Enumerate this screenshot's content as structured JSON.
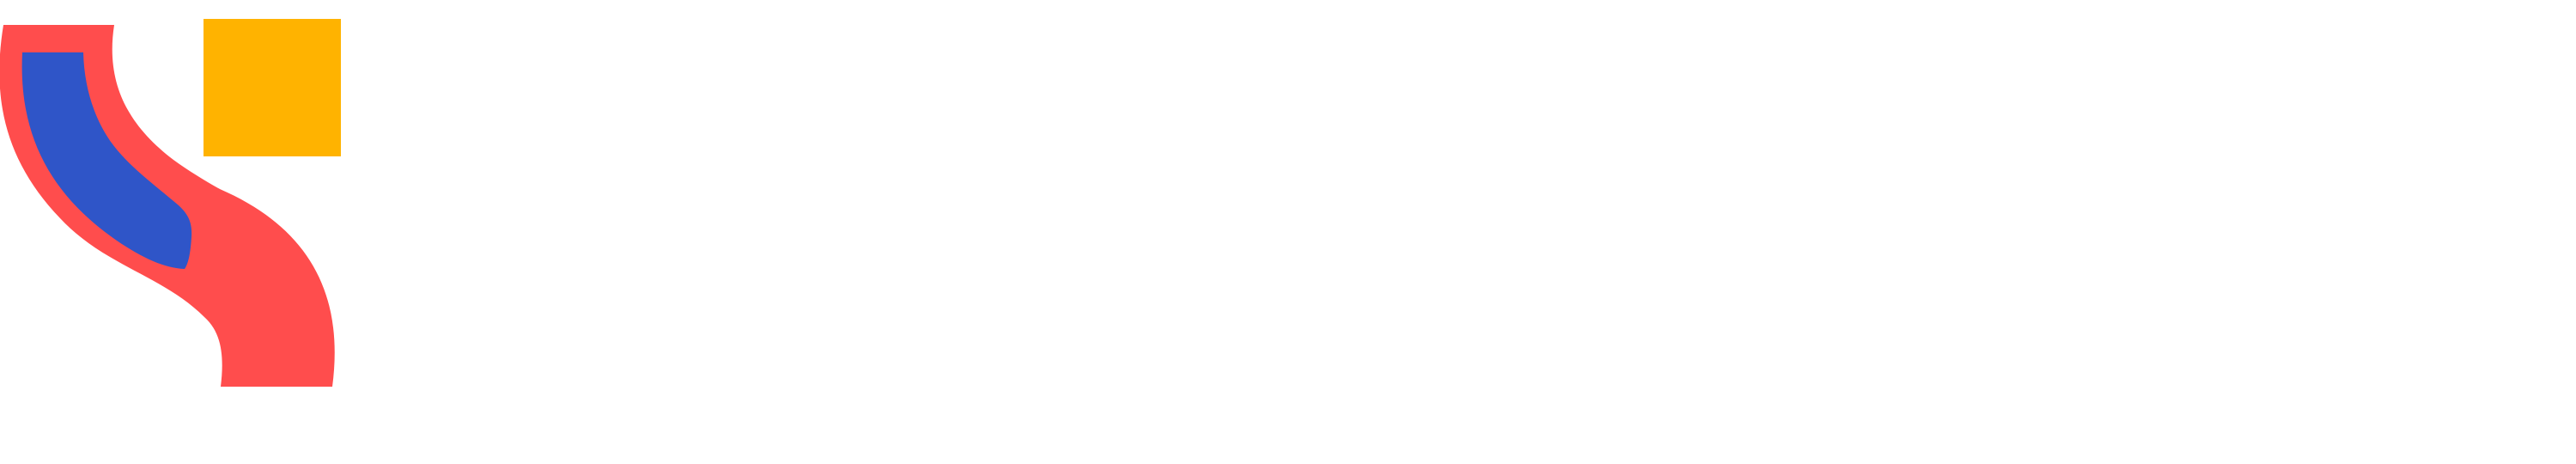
{
  "logo": {
    "icon": "abstract-logo-mark",
    "colors": {
      "coral": "#FF4D4D",
      "blue": "#2F55C8",
      "amber": "#FFB300"
    }
  },
  "background_color": "#FFFFFF"
}
